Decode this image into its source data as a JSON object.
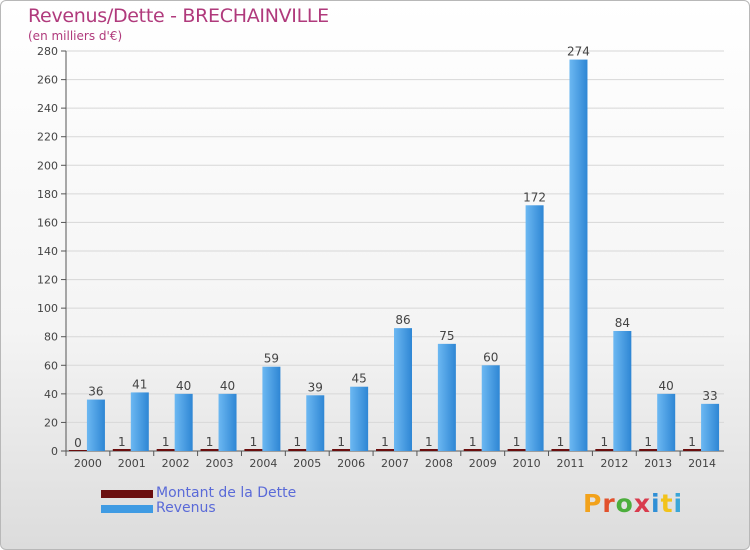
{
  "title": "Revenus/Dette - BRECHAINVILLE",
  "subtitle": "(en milliers d'€)",
  "colors": {
    "dette": "#6b0f0f",
    "revenus": "#3f9be3",
    "title": "#b03a7c",
    "legend_text": "#5a6ad8"
  },
  "legend": [
    {
      "label": "Montant de la Dette",
      "color": "#6b0f0f"
    },
    {
      "label": "Revenus",
      "color": "#3f9be3"
    }
  ],
  "logo": {
    "text": "Proxiti",
    "icon": "proxiti-logo"
  },
  "chart_data": {
    "type": "bar",
    "categories": [
      "2000",
      "2001",
      "2002",
      "2003",
      "2004",
      "2005",
      "2006",
      "2007",
      "2008",
      "2009",
      "2010",
      "2011",
      "2012",
      "2013",
      "2014"
    ],
    "series": [
      {
        "name": "Montant de la Dette",
        "values": [
          0,
          1,
          1,
          1,
          1,
          1,
          1,
          1,
          1,
          1,
          1,
          1,
          1,
          1,
          1
        ]
      },
      {
        "name": "Revenus",
        "values": [
          36,
          41,
          40,
          40,
          59,
          39,
          45,
          86,
          75,
          60,
          172,
          274,
          84,
          40,
          33
        ]
      }
    ],
    "ylim": [
      0,
      280
    ],
    "yticks": [
      0,
      20,
      40,
      60,
      80,
      100,
      120,
      140,
      160,
      180,
      200,
      220,
      240,
      260,
      280
    ],
    "grid": true
  }
}
